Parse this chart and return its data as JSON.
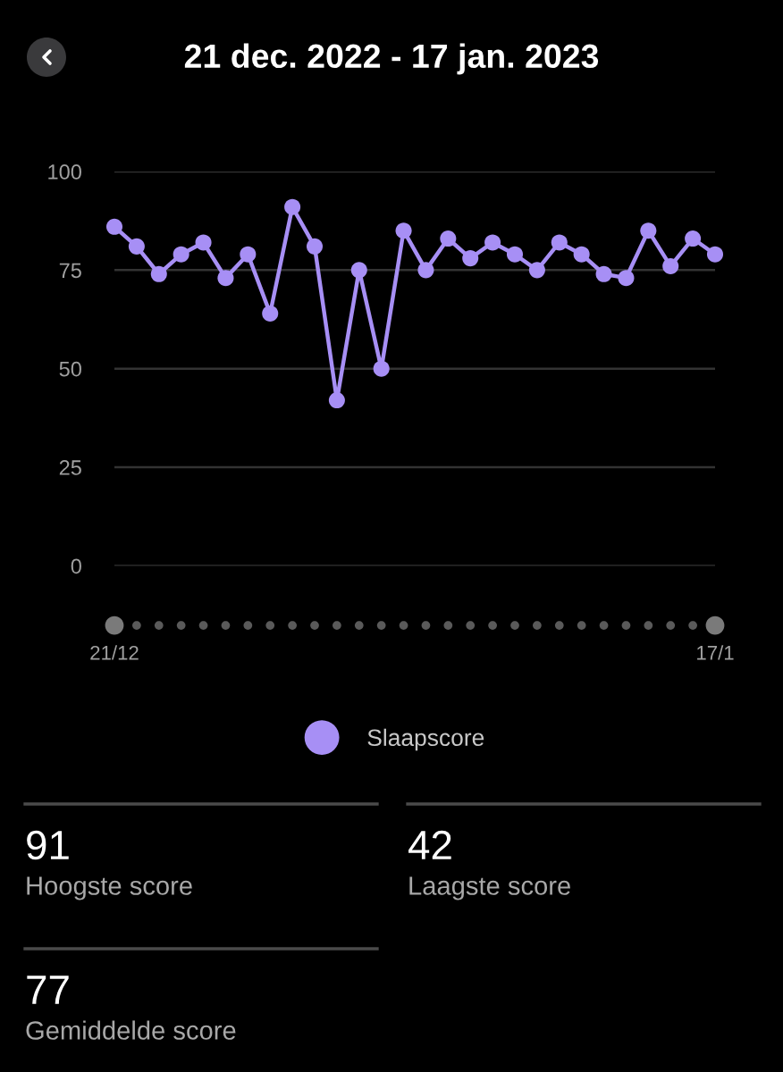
{
  "chart_data": {
    "type": "line",
    "title": "21 dec. 2022 - 17 jan. 2023",
    "categories": [
      "21/12",
      null,
      null,
      null,
      null,
      null,
      null,
      null,
      null,
      null,
      null,
      null,
      null,
      null,
      null,
      null,
      null,
      null,
      null,
      null,
      null,
      null,
      null,
      null,
      null,
      null,
      null,
      "17/1"
    ],
    "series": [
      {
        "name": "Slaapscore",
        "color": "#a78ff5",
        "values": [
          86,
          81,
          74,
          79,
          82,
          73,
          79,
          64,
          91,
          81,
          42,
          75,
          50,
          85,
          75,
          83,
          78,
          82,
          79,
          75,
          82,
          79,
          74,
          73,
          85,
          76,
          83,
          79
        ]
      }
    ],
    "ylim": [
      0,
      100
    ],
    "yticks": [
      0,
      25,
      50,
      75,
      100
    ],
    "grid": "y",
    "legend": "bottom",
    "marker": "circle",
    "line_style": "solid",
    "annotations": [
      "91",
      "Hoogste score",
      "42",
      "Laagste score",
      "77",
      "Gemiddelde score"
    ]
  }
}
